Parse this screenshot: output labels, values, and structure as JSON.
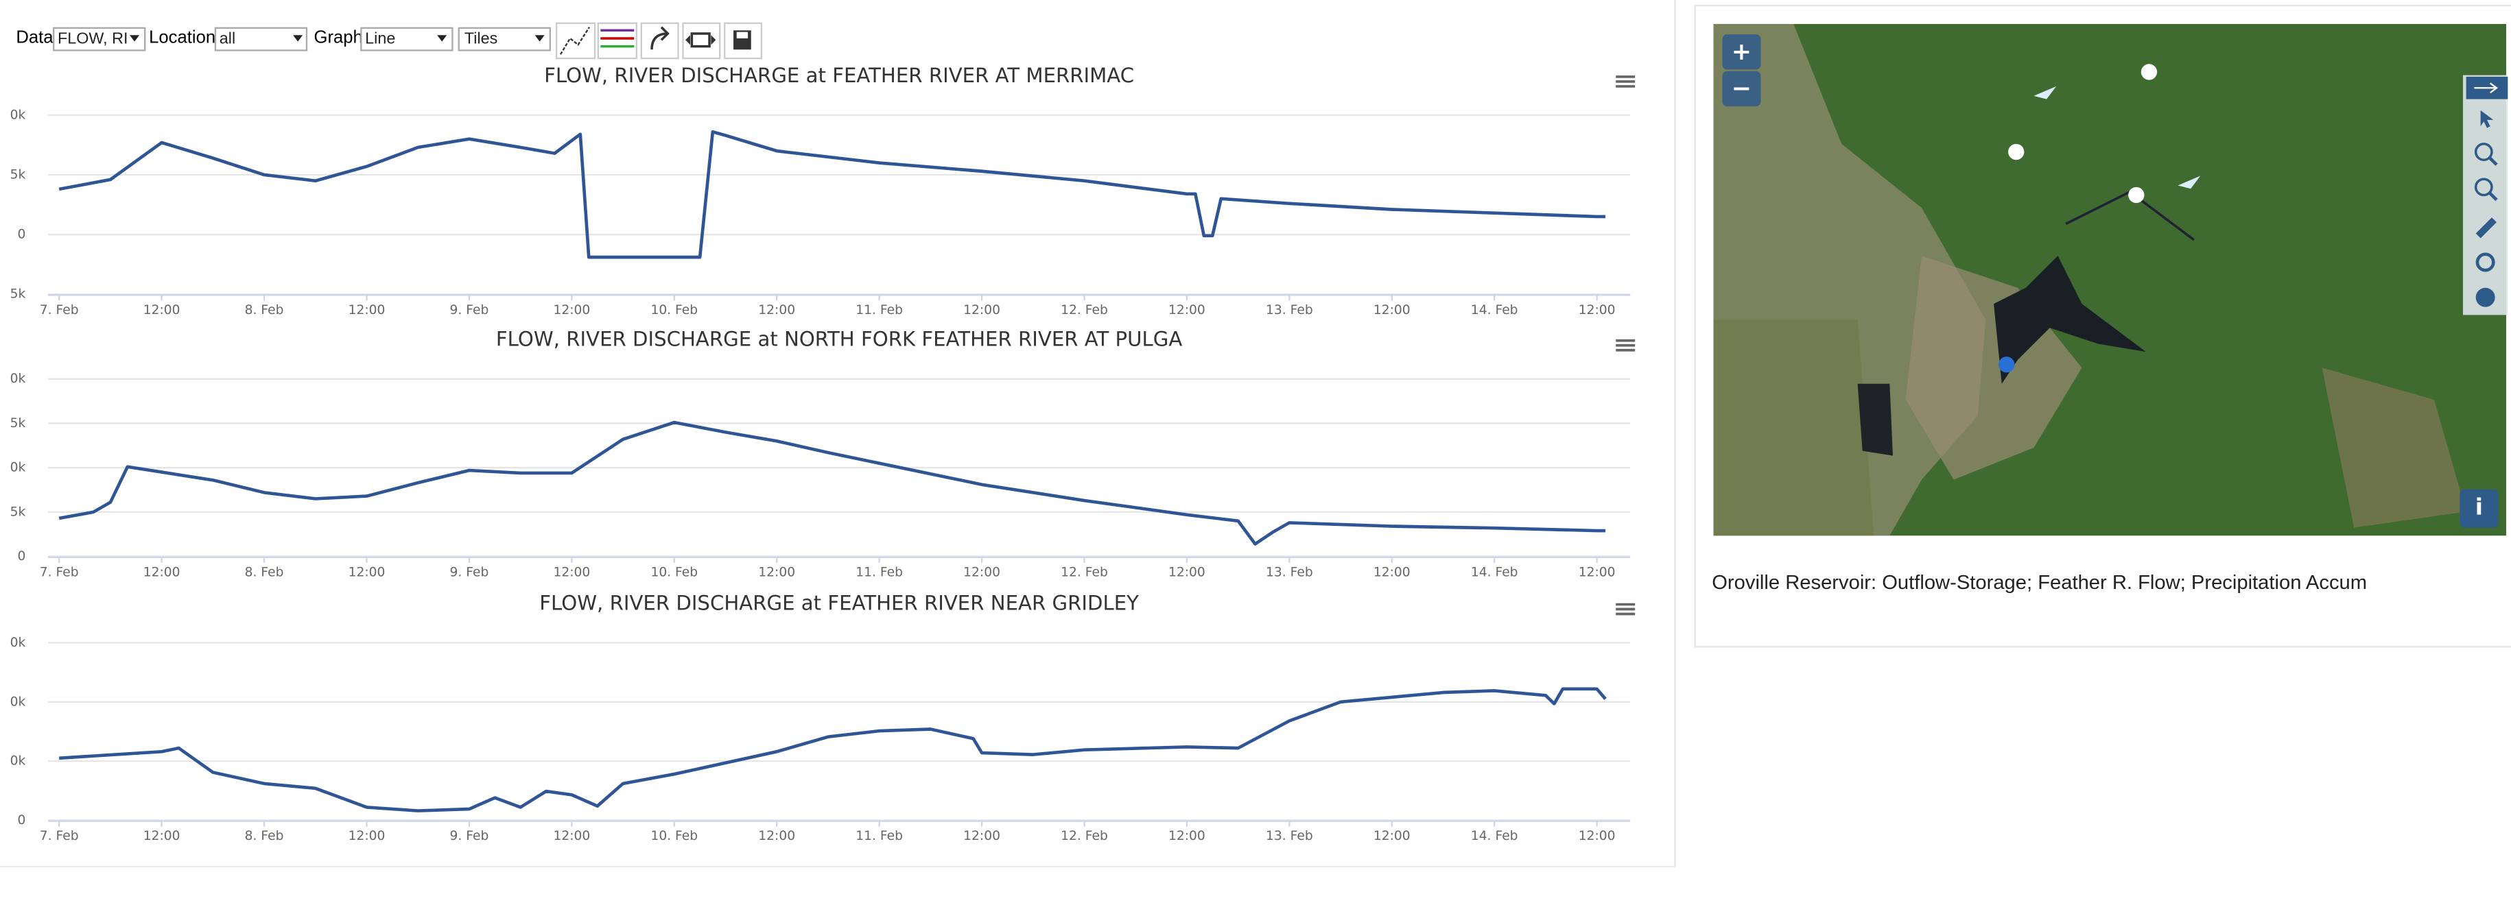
{
  "toolbar": {
    "data_label": "Data",
    "data_value": "FLOW, RI",
    "location_label": "Location",
    "location_value": "all",
    "graph_label": "Graph",
    "graph_value": "Line",
    "tiles_value": "Tiles"
  },
  "chart_data": [
    {
      "type": "line",
      "title": "FLOW, RIVER DISCHARGE at FEATHER RIVER AT MERRIMAC",
      "x": [
        0,
        6,
        12,
        18,
        24,
        30,
        36,
        42,
        48,
        54,
        58,
        61,
        62,
        75,
        76.5,
        78,
        84,
        96,
        108,
        120,
        132,
        133,
        134,
        135,
        136,
        144,
        156,
        168,
        180,
        181
      ],
      "series": [
        {
          "color": "#2f5597",
          "values": [
            3800,
            4600,
            7700,
            6400,
            5000,
            4500,
            5700,
            7300,
            8000,
            7300,
            6800,
            8400,
            -1900,
            -1900,
            8600,
            8300,
            7000,
            6000,
            5300,
            4500,
            3400,
            3400,
            -100,
            -100,
            3000,
            2600,
            2100,
            1800,
            1500,
            1500
          ]
        }
      ],
      "xlim": [
        -1.3,
        183.9
      ],
      "ylim": [
        -5000,
        10000
      ],
      "yticks": [
        {
          "value": 10000,
          "label": "0k"
        },
        {
          "value": 5000,
          "label": "5k"
        },
        0,
        {
          "value": -5000,
          "label": "5k"
        }
      ],
      "xticks": [
        {
          "value": 0,
          "label": "7. Feb"
        },
        {
          "value": 12,
          "label": "12:00"
        },
        {
          "value": 24,
          "label": "8. Feb"
        },
        {
          "value": 36,
          "label": "12:00"
        },
        {
          "value": 48,
          "label": "9. Feb"
        },
        {
          "value": 60,
          "label": "12:00"
        },
        {
          "value": 72,
          "label": "10. Feb"
        },
        {
          "value": 84,
          "label": "12:00"
        },
        {
          "value": 96,
          "label": "11. Feb"
        },
        {
          "value": 108,
          "label": "12:00"
        },
        {
          "value": 120,
          "label": "12. Feb"
        },
        {
          "value": 132,
          "label": "12:00"
        },
        {
          "value": 144,
          "label": "13. Feb"
        },
        {
          "value": 156,
          "label": "12:00"
        },
        {
          "value": 168,
          "label": "14. Feb"
        },
        {
          "value": 180,
          "label": "12:00"
        }
      ],
      "grid": true
    },
    {
      "type": "line",
      "title": "FLOW, RIVER DISCHARGE at NORTH FORK FEATHER RIVER AT PULGA",
      "x": [
        0,
        4,
        6,
        8,
        12,
        18,
        24,
        30,
        36,
        42,
        48,
        54,
        60,
        66,
        72,
        78,
        84,
        90,
        96,
        108,
        120,
        132,
        138,
        140,
        142,
        144,
        156,
        168,
        180,
        181
      ],
      "series": [
        {
          "color": "#2f5597",
          "values": [
            4300,
            5000,
            6100,
            10100,
            9500,
            8600,
            7200,
            6500,
            6800,
            8300,
            9700,
            9400,
            9400,
            13200,
            15100,
            14000,
            13000,
            11700,
            10500,
            8100,
            6300,
            4700,
            4000,
            1400,
            2700,
            3800,
            3400,
            3200,
            2900,
            2900
          ]
        }
      ],
      "xlim": [
        -1.3,
        183.9
      ],
      "ylim": [
        0,
        20000
      ],
      "yticks": [
        {
          "value": 20000,
          "label": "0k"
        },
        {
          "value": 15000,
          "label": "5k"
        },
        {
          "value": 10000,
          "label": "0k"
        },
        {
          "value": 5000,
          "label": "5k"
        },
        0
      ],
      "xticks": [
        {
          "value": 0,
          "label": "7. Feb"
        },
        {
          "value": 12,
          "label": "12:00"
        },
        {
          "value": 24,
          "label": "8. Feb"
        },
        {
          "value": 36,
          "label": "12:00"
        },
        {
          "value": 48,
          "label": "9. Feb"
        },
        {
          "value": 60,
          "label": "12:00"
        },
        {
          "value": 72,
          "label": "10. Feb"
        },
        {
          "value": 84,
          "label": "12:00"
        },
        {
          "value": 96,
          "label": "11. Feb"
        },
        {
          "value": 108,
          "label": "12:00"
        },
        {
          "value": 120,
          "label": "12. Feb"
        },
        {
          "value": 132,
          "label": "12:00"
        },
        {
          "value": 144,
          "label": "13. Feb"
        },
        {
          "value": 156,
          "label": "12:00"
        },
        {
          "value": 168,
          "label": "14. Feb"
        },
        {
          "value": 180,
          "label": "12:00"
        }
      ],
      "grid": true
    },
    {
      "type": "line",
      "title": "FLOW, RIVER DISCHARGE at FEATHER RIVER NEAR GRIDLEY",
      "x": [
        0,
        12,
        14,
        18,
        24,
        30,
        36,
        42,
        48,
        51,
        54,
        57,
        60,
        63,
        66,
        72,
        78,
        84,
        90,
        96,
        102,
        107,
        108,
        114,
        120,
        132,
        138,
        144,
        150,
        156,
        162,
        168,
        174,
        175,
        176,
        180,
        181
      ],
      "series": [
        {
          "color": "#2f5597",
          "values": [
            10500,
            11600,
            12200,
            8100,
            6200,
            5400,
            2200,
            1600,
            1900,
            3800,
            2200,
            4900,
            4300,
            2400,
            6200,
            7800,
            9700,
            11600,
            14100,
            15100,
            15400,
            13800,
            11400,
            11100,
            11900,
            12400,
            12200,
            16800,
            20000,
            20800,
            21600,
            21900,
            21100,
            19700,
            22200,
            22200,
            20500
          ]
        }
      ],
      "xlim": [
        -1.3,
        183.9
      ],
      "ylim": [
        0,
        30000
      ],
      "yticks": [
        {
          "value": 30000,
          "label": "0k"
        },
        {
          "value": 20000,
          "label": "0k"
        },
        {
          "value": 10000,
          "label": "0k"
        },
        0
      ],
      "xticks": [
        {
          "value": 0,
          "label": "7. Feb"
        },
        {
          "value": 12,
          "label": "12:00"
        },
        {
          "value": 24,
          "label": "8. Feb"
        },
        {
          "value": 36,
          "label": "12:00"
        },
        {
          "value": 48,
          "label": "9. Feb"
        },
        {
          "value": 60,
          "label": "12:00"
        },
        {
          "value": 72,
          "label": "10. Feb"
        },
        {
          "value": 84,
          "label": "12:00"
        },
        {
          "value": 96,
          "label": "11. Feb"
        },
        {
          "value": 108,
          "label": "12:00"
        },
        {
          "value": 120,
          "label": "12. Feb"
        },
        {
          "value": 132,
          "label": "12:00"
        },
        {
          "value": 144,
          "label": "13. Feb"
        },
        {
          "value": 156,
          "label": "12:00"
        },
        {
          "value": 168,
          "label": "14. Feb"
        },
        {
          "value": 180,
          "label": "12:00"
        }
      ],
      "grid": true
    }
  ],
  "map": {
    "zoom_in": "+",
    "zoom_out": "−",
    "info": "i",
    "caption": "Oroville Reservoir: Outflow-Storage; Feather R. Flow; Precipitation Accum"
  }
}
